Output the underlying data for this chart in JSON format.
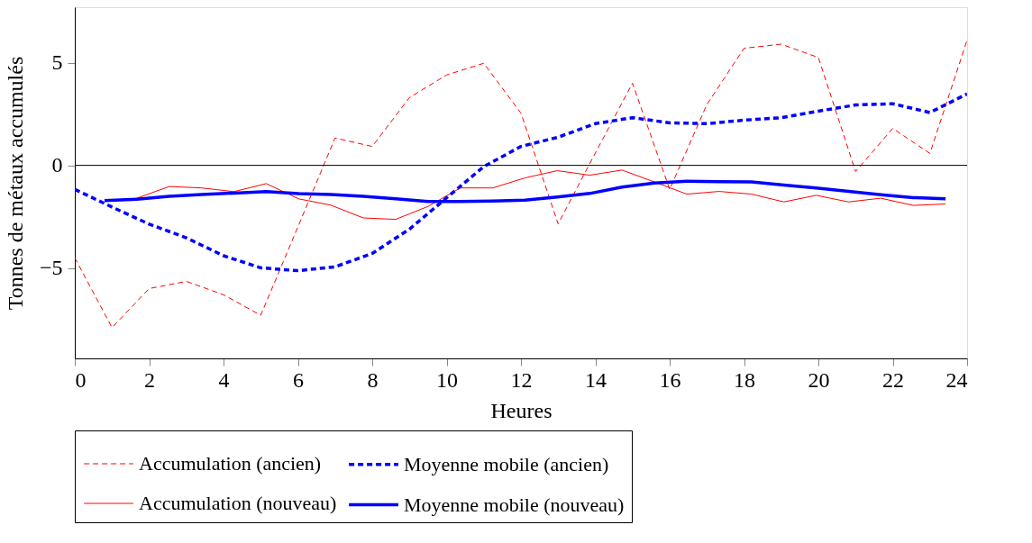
{
  "chart_data": {
    "type": "line",
    "xlabel": "Heures",
    "ylabel": "Tonnes de métaux accumulés",
    "xlim": [
      0,
      24
    ],
    "xticks": [
      0,
      2,
      4,
      6,
      8,
      10,
      12,
      14,
      16,
      18,
      20,
      22,
      24
    ],
    "ylim": [
      -9.4,
      7.7
    ],
    "yticks": [
      -5,
      0,
      5
    ],
    "grid": false,
    "legend": "bottom",
    "marker": "none",
    "ref_lines": [
      {
        "axis": "y",
        "value": 0,
        "color": "#000000",
        "line_style": "solid"
      }
    ],
    "series": [
      {
        "name": "Accumulation (ancien)",
        "color": "#ff0000",
        "line_style": "dashed",
        "x": [
          0,
          1,
          2,
          3,
          4,
          5,
          6,
          7,
          8,
          9,
          10,
          11,
          12,
          13,
          14,
          15,
          16,
          17,
          18,
          19,
          20,
          21,
          22,
          23,
          24
        ],
        "values": [
          -4.5,
          -7.9,
          -6.0,
          -5.65,
          -6.3,
          -7.3,
          -3.0,
          1.33,
          0.92,
          3.3,
          4.4,
          4.97,
          2.54,
          -2.85,
          0.6,
          4.0,
          -1.17,
          2.96,
          5.7,
          5.9,
          5.25,
          -0.3,
          1.8,
          0.58,
          6.1
        ]
      },
      {
        "name": "Accumulation (nouveau)",
        "color": "#ff0000",
        "line_style": "solid",
        "x": [
          0.8,
          1.67,
          2.54,
          3.41,
          4.28,
          5.15,
          6.02,
          6.89,
          7.76,
          8.63,
          9.5,
          10.37,
          11.24,
          12.11,
          12.98,
          13.85,
          14.72,
          15.59,
          16.46,
          17.33,
          18.2,
          19.07,
          19.94,
          20.81,
          21.68,
          22.55,
          23.42
        ],
        "values": [
          -1.72,
          -1.6,
          -1.03,
          -1.1,
          -1.28,
          -0.89,
          -1.63,
          -1.94,
          -2.56,
          -2.63,
          -2.0,
          -1.1,
          -1.1,
          -0.61,
          -0.26,
          -0.48,
          -0.23,
          -0.81,
          -1.4,
          -1.27,
          -1.4,
          -1.78,
          -1.46,
          -1.78,
          -1.6,
          -1.95,
          -1.88
        ]
      },
      {
        "name": "Moyenne mobile (ancien)",
        "color": "#0000ff",
        "line_style": "dashed",
        "x": [
          0,
          1,
          2,
          3,
          4,
          5,
          6,
          7,
          8,
          9,
          10,
          11,
          12,
          13,
          14,
          15,
          16,
          17,
          18,
          19,
          20,
          21,
          22,
          23,
          24
        ],
        "values": [
          -1.17,
          -2.03,
          -2.86,
          -3.53,
          -4.4,
          -4.99,
          -5.13,
          -4.94,
          -4.29,
          -3.11,
          -1.58,
          -0.06,
          0.92,
          1.37,
          2.03,
          2.32,
          2.07,
          2.03,
          2.2,
          2.32,
          2.64,
          2.94,
          3.0,
          2.57,
          3.48
        ]
      },
      {
        "name": "Moyenne mobile (nouveau)",
        "color": "#0000ff",
        "line_style": "solid",
        "x": [
          0.8,
          1.67,
          2.54,
          3.41,
          4.28,
          5.15,
          6.02,
          6.89,
          7.76,
          8.63,
          9.5,
          10.37,
          11.24,
          12.11,
          12.98,
          13.85,
          14.72,
          15.59,
          16.46,
          17.33,
          18.2,
          19.07,
          19.94,
          20.81,
          21.68,
          22.55,
          23.42
        ],
        "values": [
          -1.72,
          -1.65,
          -1.51,
          -1.42,
          -1.35,
          -1.28,
          -1.38,
          -1.42,
          -1.51,
          -1.63,
          -1.76,
          -1.76,
          -1.74,
          -1.69,
          -1.54,
          -1.37,
          -1.06,
          -0.86,
          -0.77,
          -0.79,
          -0.81,
          -0.96,
          -1.1,
          -1.27,
          -1.43,
          -1.57,
          -1.63
        ]
      }
    ]
  }
}
